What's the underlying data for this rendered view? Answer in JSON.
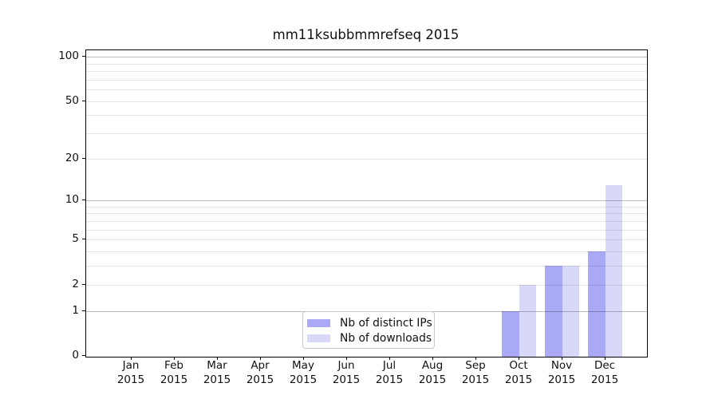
{
  "chart_data": {
    "type": "bar",
    "title": "mm11ksubbmmrefseq 2015",
    "categories": [
      "Jan",
      "Feb",
      "Mar",
      "Apr",
      "May",
      "Jun",
      "Jul",
      "Aug",
      "Sep",
      "Oct",
      "Nov",
      "Dec"
    ],
    "x_sublabel_year": "2015",
    "series": [
      {
        "name": "Nb of distinct IPs",
        "color": "#a9a9f6",
        "values": [
          0,
          0,
          0,
          0,
          0,
          0,
          0,
          0,
          0,
          1,
          3,
          4
        ]
      },
      {
        "name": "Nb of downloads",
        "color": "#d8d8f8",
        "values": [
          0,
          0,
          0,
          0,
          0,
          0,
          0,
          0,
          0,
          2,
          3,
          13
        ]
      }
    ],
    "xlabel": "",
    "ylabel": "",
    "yscale": "log1p",
    "ylim": [
      0,
      110
    ],
    "yticks": [
      0,
      1,
      2,
      5,
      10,
      20,
      50,
      100
    ],
    "gridline_values": [
      1,
      2,
      3,
      4,
      5,
      6,
      7,
      8,
      9,
      10,
      20,
      30,
      40,
      50,
      60,
      70,
      80,
      90,
      100
    ],
    "major_gridline_values": [
      1,
      10,
      100
    ],
    "grid": true,
    "legend_position": "lower center",
    "legend": {
      "items": [
        {
          "label": "Nb of distinct IPs",
          "color": "#a9a9f6"
        },
        {
          "label": "Nb of downloads",
          "color": "#d8d8f8"
        }
      ]
    },
    "style": {
      "spine_color": "#000000",
      "major_grid_color": "rgba(0,0,0,0.26)",
      "minor_grid_color": "rgba(0,0,0,0.10)",
      "background": "#ffffff",
      "text_color": "#111111"
    }
  }
}
